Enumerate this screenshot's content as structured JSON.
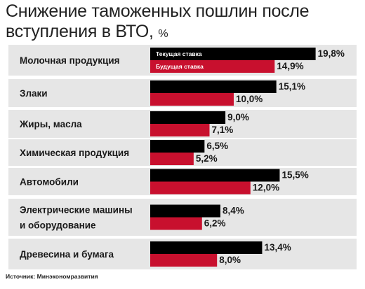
{
  "title": {
    "text": "Снижение таможенных пошлин после вступления в ВТО,",
    "unit": "%"
  },
  "source": "Источник: Минэкономразвития",
  "colors": {
    "band": "#e6e6e6",
    "current": "#000000",
    "future": "#c8102e"
  },
  "chart_data": {
    "type": "bar",
    "orientation": "horizontal",
    "categories": [
      [
        "Молочная продукция"
      ],
      [
        "Злаки"
      ],
      [
        "Жиры, масла"
      ],
      [
        "Химическая продукция"
      ],
      [
        "Автомобили"
      ],
      [
        "Электрические машины",
        "и оборудование"
      ],
      [
        "Древесина и бумага"
      ]
    ],
    "series": [
      {
        "name": "Текущая ставка",
        "values": [
          19.8,
          15.1,
          9.0,
          6.5,
          15.5,
          8.4,
          13.4
        ],
        "labels": [
          "19,8%",
          "15,1%",
          "9,0%",
          "6,5%",
          "15,5%",
          "8,4%",
          "13,4%"
        ]
      },
      {
        "name": "Будущая ставка",
        "values": [
          14.9,
          10.0,
          7.1,
          5.2,
          12.0,
          6.2,
          8.0
        ],
        "labels": [
          "14,9%",
          "10,0%",
          "7,1%",
          "5,2%",
          "12,0%",
          "6,2%",
          "8,0%"
        ]
      }
    ],
    "xlim": [
      0,
      20
    ],
    "legend": "inside-first-bars"
  }
}
